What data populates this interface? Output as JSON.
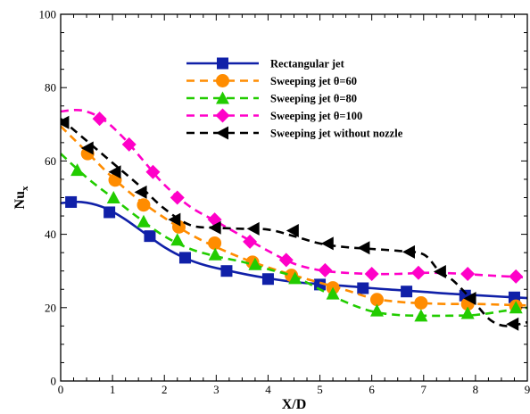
{
  "chart_data": {
    "type": "line",
    "title": "",
    "xlabel": "X/D",
    "ylabel": "Nu",
    "ylabel_subscript": "x",
    "xlim": [
      0,
      9
    ],
    "ylim": [
      0,
      100
    ],
    "xticks": [
      "0",
      "1",
      "2",
      "3",
      "4",
      "5",
      "6",
      "7",
      "8",
      "9"
    ],
    "yticks": [
      "0",
      "20",
      "40",
      "60",
      "80",
      "100"
    ],
    "grid": false,
    "legend_position": "top-right",
    "series": [
      {
        "name": "Rectangular jet",
        "color": "#1020a8",
        "line_style": "solid",
        "marker": "square",
        "x": [
          0,
          0.4,
          0.8,
          1.2,
          1.6,
          2.0,
          2.4,
          2.8,
          3.2,
          3.6,
          4.0,
          4.5,
          5.0,
          5.5,
          6.0,
          6.5,
          7.0,
          7.5,
          8.0,
          8.5,
          9.0
        ],
        "y": [
          48.5,
          48.8,
          47.5,
          44.5,
          40.5,
          36.5,
          33.5,
          31.5,
          30.2,
          29.0,
          28.0,
          27.0,
          26.4,
          25.9,
          25.3,
          24.8,
          24.3,
          23.8,
          23.4,
          23.0,
          22.6
        ],
        "markers_x": [
          0.2,
          0.94,
          1.72,
          2.4,
          3.2,
          4.0,
          5.0,
          5.83,
          6.67,
          7.8,
          8.75
        ],
        "markers_y": [
          48.8,
          46.0,
          39.5,
          33.6,
          30.0,
          27.8,
          26.3,
          25.3,
          24.4,
          23.3,
          22.8
        ]
      },
      {
        "name": "Sweeping jet θ=60",
        "color": "#ff8c00",
        "line_style": "dashed",
        "marker": "circle",
        "x": [
          0,
          0.5,
          1.0,
          1.5,
          2.0,
          2.5,
          3.0,
          3.5,
          4.0,
          4.5,
          5.0,
          5.5,
          6.0,
          6.5,
          7.0,
          7.5,
          8.0,
          8.5,
          9.0
        ],
        "y": [
          69.5,
          62.5,
          55.5,
          49.5,
          44.5,
          40.0,
          36.5,
          33.5,
          31.0,
          28.8,
          26.8,
          24.8,
          22.6,
          21.6,
          21.2,
          21.0,
          21.0,
          20.8,
          20.6
        ],
        "markers_x": [
          0.52,
          1.05,
          1.6,
          2.28,
          2.97,
          3.7,
          4.45,
          5.25,
          6.1,
          6.95,
          7.85,
          8.78
        ],
        "markers_y": [
          62.0,
          54.8,
          48.0,
          42.0,
          37.6,
          32.4,
          28.8,
          25.4,
          22.2,
          21.3,
          21.0,
          20.4
        ]
      },
      {
        "name": "Sweeping jet θ=80",
        "color": "#22cc00",
        "line_style": "dashed",
        "marker": "triangle-up",
        "x": [
          0,
          0.5,
          1.0,
          1.5,
          2.0,
          2.5,
          3.0,
          3.5,
          4.0,
          4.5,
          5.0,
          5.5,
          6.0,
          6.5,
          7.0,
          7.5,
          8.0,
          8.5,
          9.0
        ],
        "y": [
          62.0,
          55.5,
          50.0,
          44.5,
          39.5,
          36.0,
          34.0,
          32.5,
          30.5,
          28.5,
          25.0,
          21.5,
          19.0,
          18.0,
          17.8,
          17.8,
          18.0,
          19.0,
          20.0
        ],
        "markers_x": [
          0.32,
          1.02,
          1.6,
          2.25,
          2.98,
          3.75,
          4.52,
          5.25,
          6.1,
          6.95,
          7.85,
          8.78
        ],
        "markers_y": [
          57.5,
          50.0,
          43.5,
          38.5,
          34.5,
          31.8,
          28.0,
          23.8,
          19.2,
          17.8,
          18.5,
          20.0
        ]
      },
      {
        "name": "Sweeping jet θ=100",
        "color": "#ff00c8",
        "line_style": "dashed",
        "marker": "diamond",
        "x": [
          0,
          0.4,
          0.8,
          1.2,
          1.6,
          2.0,
          2.5,
          3.0,
          3.5,
          4.0,
          4.5,
          5.0,
          5.5,
          6.0,
          6.5,
          7.0,
          7.5,
          8.0,
          8.5,
          9.0
        ],
        "y": [
          73.5,
          73.8,
          71.5,
          66.5,
          60.0,
          53.5,
          47.5,
          43.5,
          39.5,
          35.5,
          32.0,
          30.2,
          29.5,
          29.2,
          29.2,
          29.5,
          29.4,
          29.0,
          28.6,
          28.2
        ],
        "markers_x": [
          0.75,
          1.32,
          1.78,
          2.25,
          2.97,
          3.65,
          4.35,
          5.1,
          6.0,
          6.9,
          7.85,
          8.78
        ],
        "markers_y": [
          71.5,
          64.5,
          57.0,
          50.0,
          44.0,
          38.0,
          33.0,
          30.2,
          29.2,
          29.5,
          29.2,
          28.5
        ]
      },
      {
        "name": "Sweeping jet without nozzle",
        "color": "#000000",
        "line_style": "dashed",
        "marker": "triangle-left",
        "x": [
          0,
          0.5,
          1.0,
          1.5,
          2.0,
          2.5,
          3.0,
          3.5,
          4.0,
          4.5,
          5.0,
          5.5,
          6.0,
          6.5,
          7.0,
          7.3,
          7.6,
          8.0,
          8.3,
          8.6,
          9.0
        ],
        "y": [
          71.5,
          65.5,
          59.5,
          53.5,
          47.0,
          42.5,
          41.8,
          41.5,
          41.3,
          39.5,
          37.5,
          36.5,
          36.0,
          35.5,
          34.5,
          30.0,
          27.0,
          21.0,
          16.5,
          15.0,
          16.0
        ],
        "markers_x": [
          0.05,
          0.52,
          1.05,
          1.55,
          2.2,
          2.98,
          3.72,
          4.48,
          5.15,
          5.85,
          6.72,
          7.32,
          7.9,
          8.72
        ],
        "markers_y": [
          70.5,
          63.5,
          57.0,
          51.5,
          44.0,
          41.8,
          41.5,
          41.0,
          37.5,
          36.3,
          35.2,
          29.8,
          22.5,
          15.5
        ]
      }
    ]
  }
}
